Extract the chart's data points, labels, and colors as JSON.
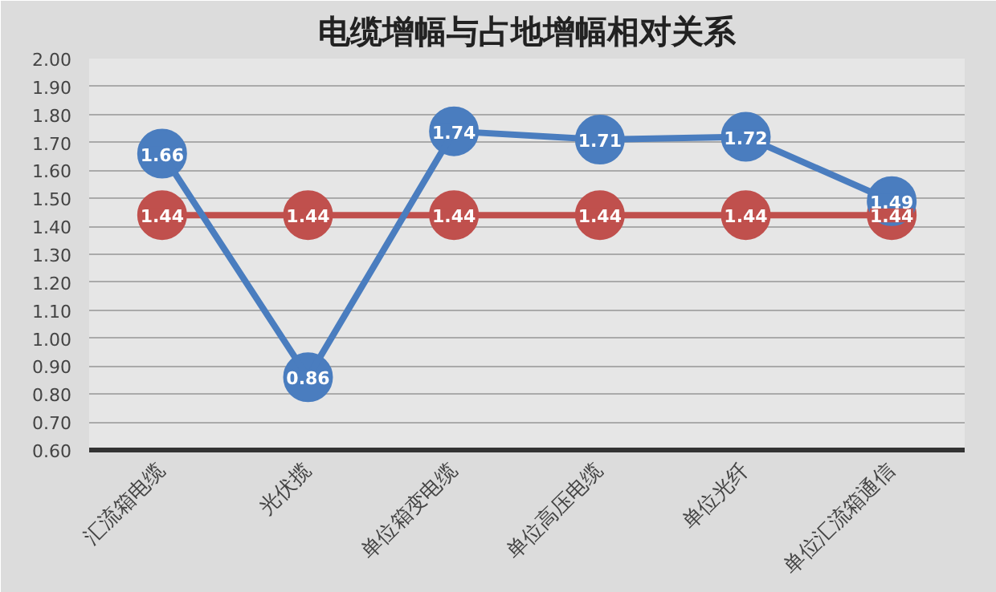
{
  "chart_data": {
    "type": "line",
    "title": "电缆增幅与占地增幅相对关系",
    "categories": [
      "汇流箱电缆",
      "光伏揽",
      "单位箱变电缆",
      "单位高压电缆",
      "单位光纤",
      "单位汇流箱通信"
    ],
    "series": [
      {
        "color": "#c0504d",
        "values": [
          1.44,
          1.44,
          1.44,
          1.44,
          1.44,
          1.44
        ]
      },
      {
        "color": "#4a7dbf",
        "values": [
          1.66,
          0.86,
          1.74,
          1.71,
          1.72,
          1.49
        ]
      }
    ],
    "ylim": [
      0.6,
      2.0
    ],
    "yticks": [
      {
        "value": 0.6,
        "label": "0.60"
      },
      {
        "value": 0.7,
        "label": "0.70"
      },
      {
        "value": 0.8,
        "label": "0.80"
      },
      {
        "value": 0.9,
        "label": "0.90"
      },
      {
        "value": 1.0,
        "label": "1.00"
      },
      {
        "value": 1.1,
        "label": "1.10"
      },
      {
        "value": 1.2,
        "label": "1.20"
      },
      {
        "value": 1.3,
        "label": "1.30"
      },
      {
        "value": 1.4,
        "label": "1.40"
      },
      {
        "value": 1.5,
        "label": "1.50"
      },
      {
        "value": 1.6,
        "label": "1.60"
      },
      {
        "value": 1.7,
        "label": "1.70"
      },
      {
        "value": 1.8,
        "label": "1.80"
      },
      {
        "value": 1.9,
        "label": "1.90"
      },
      {
        "value": 2.0,
        "label": "2.00"
      }
    ],
    "grid": "y",
    "marker": "circle",
    "line_style": "solid",
    "data_labels": true
  }
}
